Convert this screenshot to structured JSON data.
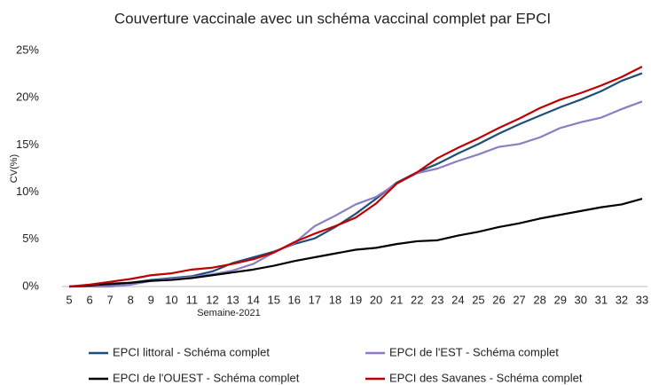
{
  "chart_data": {
    "type": "line",
    "title": "Couverture vaccinale avec un schéma vaccinal complet par EPCI",
    "x_label": "Semaine-2021",
    "y_label": "CV(%)",
    "categories": [
      "5",
      "6",
      "7",
      "8",
      "9",
      "10",
      "11",
      "12",
      "13",
      "14",
      "15",
      "16",
      "17",
      "18",
      "19",
      "20",
      "21",
      "22",
      "23",
      "24",
      "25",
      "26",
      "27",
      "28",
      "29",
      "30",
      "31",
      "32",
      "33"
    ],
    "ylim": [
      0,
      25
    ],
    "yticks": [
      {
        "value": 0,
        "label": "0%"
      },
      {
        "value": 5,
        "label": "5%"
      },
      {
        "value": 10,
        "label": "10%"
      },
      {
        "value": 15,
        "label": "15%"
      },
      {
        "value": 20,
        "label": "20%"
      },
      {
        "value": 25,
        "label": "25%"
      }
    ],
    "grid": false,
    "legend": "bottom",
    "series": [
      {
        "name": "EPCI littoral - Schéma complet",
        "color": "#1f4e79",
        "values": [
          0,
          0.1,
          0.2,
          0.4,
          0.7,
          0.9,
          1.1,
          1.6,
          2.5,
          3.1,
          3.7,
          4.5,
          5.1,
          6.3,
          7.7,
          9.3,
          11,
          12.1,
          13,
          14.1,
          15.1,
          16.2,
          17.2,
          18.1,
          19,
          19.8,
          20.7,
          21.8,
          22.6
        ]
      },
      {
        "name": "EPCI de l'EST - Schéma complet",
        "color": "#8e7cc3",
        "values": [
          0,
          0,
          0,
          0.2,
          0.6,
          0.8,
          1,
          1.3,
          1.7,
          2.4,
          3.6,
          4.6,
          6.4,
          7.5,
          8.7,
          9.5,
          10.9,
          12,
          12.5,
          13.3,
          14,
          14.8,
          15.1,
          15.8,
          16.8,
          17.4,
          17.9,
          18.8,
          19.6
        ]
      },
      {
        "name": "EPCI de l'OUEST - Schéma complet",
        "color": "#000000",
        "values": [
          0,
          0.1,
          0.3,
          0.4,
          0.6,
          0.7,
          0.9,
          1.2,
          1.5,
          1.8,
          2.2,
          2.7,
          3.1,
          3.5,
          3.9,
          4.1,
          4.5,
          4.8,
          4.9,
          5.4,
          5.8,
          6.3,
          6.7,
          7.2,
          7.6,
          8,
          8.4,
          8.7,
          9.3
        ]
      },
      {
        "name": "EPCI des Savanes - Schéma complet",
        "color": "#c00000",
        "values": [
          0,
          0.2,
          0.5,
          0.8,
          1.2,
          1.4,
          1.8,
          2,
          2.4,
          2.9,
          3.6,
          4.7,
          5.6,
          6.4,
          7.3,
          8.8,
          10.9,
          12.1,
          13.6,
          14.7,
          15.7,
          16.8,
          17.8,
          18.9,
          19.8,
          20.5,
          21.3,
          22.2,
          23.3
        ]
      }
    ]
  }
}
